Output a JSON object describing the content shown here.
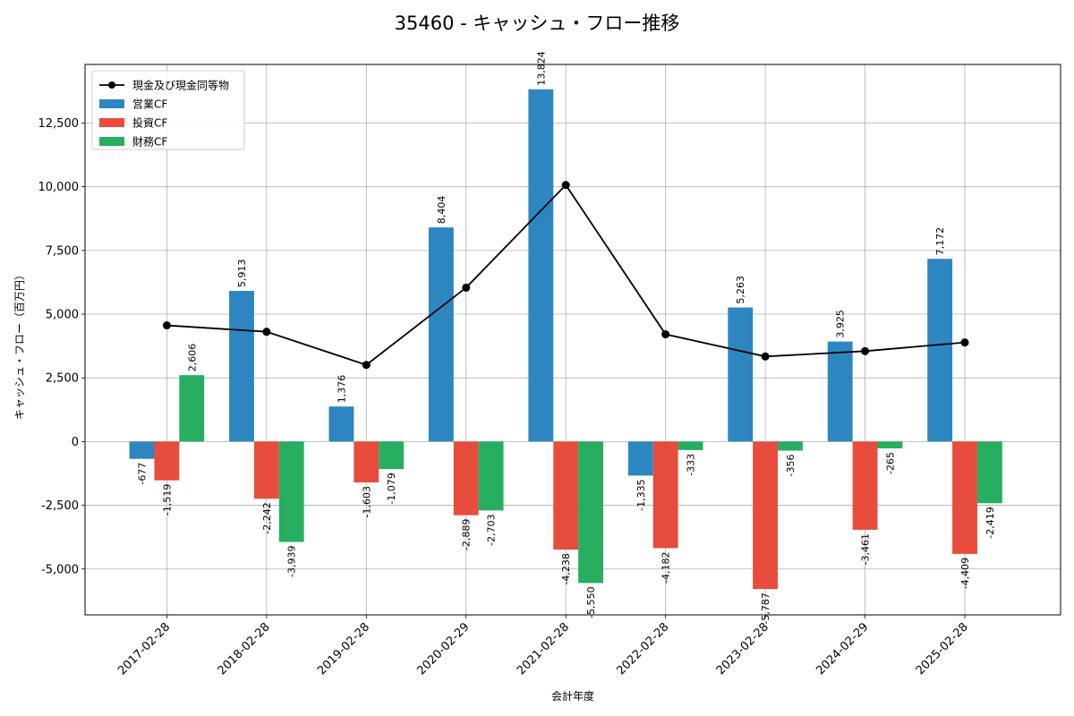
{
  "chart_data": {
    "type": "bar",
    "title": "35460 - キャッシュ・フロー推移",
    "xlabel": "会計年度",
    "ylabel": "キャッシュ・フロー（百万円）",
    "ylim": [
      -6800,
      14800
    ],
    "yticks": [
      -5000,
      -2500,
      0,
      2500,
      5000,
      7500,
      10000,
      12500
    ],
    "ytick_labels": [
      "-5,000",
      "-2,500",
      "0",
      "2,500",
      "5,000",
      "7,500",
      "10,000",
      "12,500"
    ],
    "grid": true,
    "legend_position": "top-left",
    "categories": [
      "2017-02-28",
      "2018-02-28",
      "2019-02-28",
      "2020-02-29",
      "2021-02-28",
      "2022-02-28",
      "2023-02-28",
      "2024-02-29",
      "2025-02-28"
    ],
    "series": [
      {
        "name": "営業CF",
        "color": "#2e86c1",
        "values": [
          -677,
          5913,
          1376,
          8404,
          13824,
          -1335,
          5263,
          3925,
          7172
        ],
        "labels": [
          "-677",
          "5,913",
          "1,376",
          "8,404",
          "13,824",
          "-1,335",
          "5,263",
          "3,925",
          "7,172"
        ]
      },
      {
        "name": "投資CF",
        "color": "#e74c3c",
        "values": [
          -1519,
          -2242,
          -1603,
          -2889,
          -4238,
          -4182,
          -5787,
          -3461,
          -4409
        ],
        "labels": [
          "-1,519",
          "-2,242",
          "-1,603",
          "-2,889",
          "-4,238",
          "-4,182",
          "-5,787",
          "-3,461",
          "-4,409"
        ]
      },
      {
        "name": "財務CF",
        "color": "#27ae60",
        "values": [
          2606,
          -3939,
          -1079,
          -2703,
          -5550,
          -333,
          -356,
          -265,
          -2419
        ],
        "labels": [
          "2,606",
          "-3,939",
          "-1,079",
          "-2,703",
          "-5,550",
          "-333",
          "-356",
          "-265",
          "-2,419"
        ]
      }
    ],
    "line_series": {
      "name": "現金及び現金同等物",
      "color": "#000000",
      "values": [
        4560,
        4310,
        3010,
        6040,
        10070,
        4210,
        3340,
        3550,
        3890
      ]
    }
  }
}
